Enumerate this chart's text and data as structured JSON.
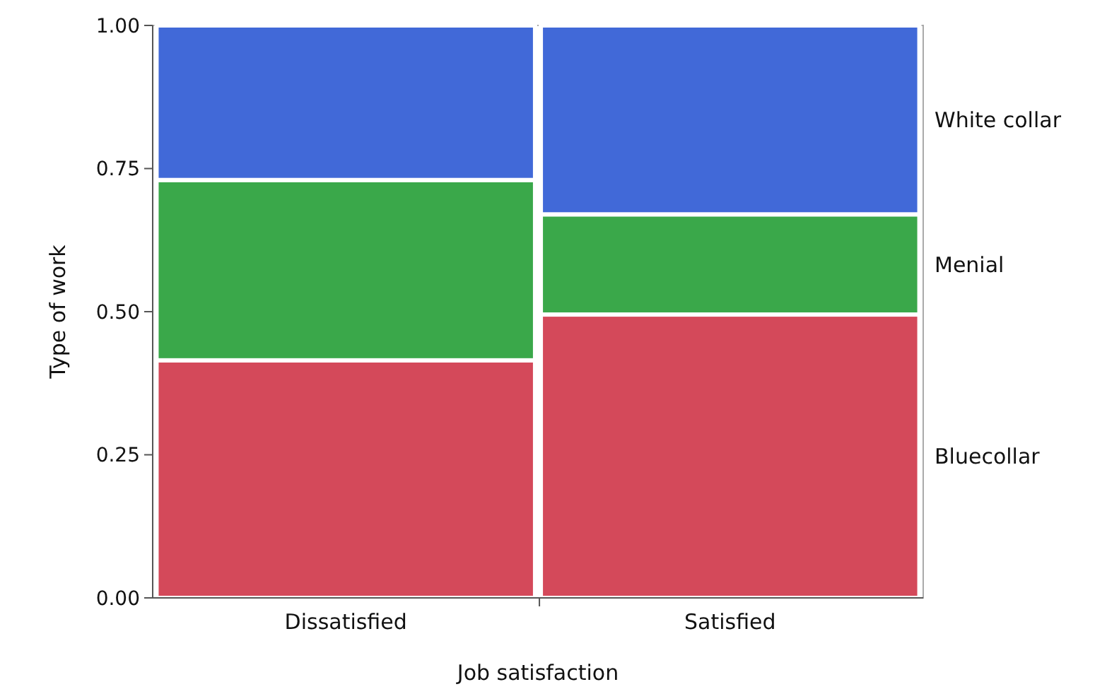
{
  "chart_data": {
    "type": "bar",
    "stacked": true,
    "xlabel": "Job satisfaction",
    "ylabel": "Type of work",
    "categories": [
      "Dissatisfied",
      "Satisfied"
    ],
    "ylim": [
      0,
      1
    ],
    "yticks": [
      {
        "value": 0,
        "label": "0.00"
      },
      {
        "value": 0.25,
        "label": "0.25"
      },
      {
        "value": 0.5,
        "label": "0.50"
      },
      {
        "value": 0.75,
        "label": "0.75"
      },
      {
        "value": 1,
        "label": "1.00"
      }
    ],
    "legend": "right",
    "series": [
      {
        "name": "Bluecollar",
        "color": "#d4495a",
        "values": [
          0.415,
          0.495
        ]
      },
      {
        "name": "Menial",
        "color": "#3aa84a",
        "values": [
          0.315,
          0.175
        ]
      },
      {
        "name": "White collar",
        "color": "#4169d8",
        "values": [
          0.27,
          0.33
        ]
      }
    ]
  }
}
